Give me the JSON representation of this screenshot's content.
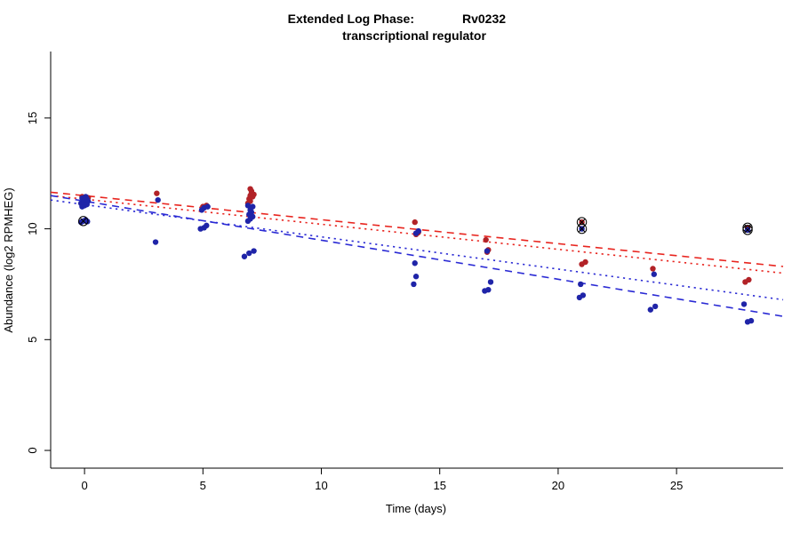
{
  "chart_data": {
    "type": "scatter",
    "title_left": "Extended Log Phase:",
    "title_gene": "Rv0232",
    "subtitle": "transcriptional regulator",
    "xlabel": "Time  (days)",
    "ylabel": "Abundance  (log2 RPMHEG)",
    "xlim": [
      -1.43,
      29.5
    ],
    "ylim": [
      -0.8,
      18.0
    ],
    "xticks": [
      0,
      5,
      10,
      15,
      20,
      25
    ],
    "yticks": [
      0,
      5,
      10,
      15
    ],
    "legend": "none",
    "grid": false,
    "colors": {
      "red_points": "#b22227",
      "blue_points": "#1f24a8",
      "red_line": "#e8251f",
      "blue_line": "#2a2ad4"
    },
    "series": [
      {
        "name": "red-series",
        "color": "#b22227",
        "points": [
          [
            -0.1,
            11.45
          ],
          [
            0.0,
            11.3
          ],
          [
            0.15,
            11.4
          ],
          [
            3.05,
            11.6
          ],
          [
            5.0,
            11.0
          ],
          [
            5.15,
            11.05
          ],
          [
            6.9,
            11.15
          ],
          [
            7.0,
            11.25
          ],
          [
            6.95,
            11.35
          ],
          [
            7.1,
            11.45
          ],
          [
            7.0,
            11.5
          ],
          [
            7.15,
            11.55
          ],
          [
            7.05,
            11.6
          ],
          [
            7.05,
            11.7
          ],
          [
            7.0,
            11.8
          ],
          [
            13.95,
            10.3
          ],
          [
            14.0,
            9.75
          ],
          [
            14.1,
            9.85
          ],
          [
            16.95,
            9.5
          ],
          [
            17.0,
            8.95
          ],
          [
            17.05,
            9.05
          ],
          [
            21.0,
            8.4
          ],
          [
            21.15,
            8.5
          ],
          [
            24.0,
            8.2
          ],
          [
            27.9,
            7.6
          ],
          [
            28.05,
            7.7
          ]
        ]
      },
      {
        "name": "blue-series",
        "color": "#1f24a8",
        "points": [
          [
            -0.15,
            10.3
          ],
          [
            0.05,
            10.4
          ],
          [
            0.12,
            10.33
          ],
          [
            -0.1,
            11.0
          ],
          [
            0.0,
            11.05
          ],
          [
            0.1,
            11.1
          ],
          [
            -0.15,
            11.15
          ],
          [
            0.05,
            11.2
          ],
          [
            0.15,
            11.25
          ],
          [
            -0.05,
            11.3
          ],
          [
            0.1,
            11.35
          ],
          [
            -0.1,
            11.38
          ],
          [
            0.0,
            11.4
          ],
          [
            0.05,
            11.45
          ],
          [
            3.0,
            9.4
          ],
          [
            3.1,
            11.3
          ],
          [
            4.9,
            10.0
          ],
          [
            5.05,
            10.05
          ],
          [
            5.15,
            10.15
          ],
          [
            4.95,
            10.85
          ],
          [
            5.05,
            10.95
          ],
          [
            5.2,
            11.0
          ],
          [
            6.75,
            8.75
          ],
          [
            6.95,
            8.9
          ],
          [
            7.15,
            9.0
          ],
          [
            6.9,
            10.35
          ],
          [
            7.0,
            10.45
          ],
          [
            7.1,
            10.55
          ],
          [
            6.95,
            10.65
          ],
          [
            7.05,
            10.75
          ],
          [
            7.0,
            10.85
          ],
          [
            7.1,
            11.0
          ],
          [
            6.9,
            11.05
          ],
          [
            13.9,
            7.5
          ],
          [
            14.0,
            7.85
          ],
          [
            13.95,
            8.45
          ],
          [
            14.0,
            9.8
          ],
          [
            14.1,
            9.9
          ],
          [
            16.9,
            7.2
          ],
          [
            17.05,
            7.25
          ],
          [
            17.15,
            7.6
          ],
          [
            17.0,
            9.0
          ],
          [
            20.9,
            6.9
          ],
          [
            21.05,
            7.0
          ],
          [
            20.95,
            7.5
          ],
          [
            23.9,
            6.35
          ],
          [
            24.1,
            6.5
          ],
          [
            24.05,
            7.95
          ],
          [
            27.85,
            6.6
          ],
          [
            28.0,
            5.8
          ],
          [
            28.15,
            5.85
          ]
        ]
      }
    ],
    "marked_points": [
      {
        "x": -0.05,
        "y": 10.35,
        "color": "#1f24a8"
      },
      {
        "x": 21.0,
        "y": 10.3,
        "color": "#b22227"
      },
      {
        "x": 21.0,
        "y": 10.0,
        "color": "#1f24a8"
      },
      {
        "x": 28.0,
        "y": 10.05,
        "color": "#b22227"
      },
      {
        "x": 28.0,
        "y": 9.95,
        "color": "#1f24a8"
      }
    ],
    "trend_lines": [
      {
        "name": "fit-red-dashed",
        "color": "#e8251f",
        "dash": "8 6",
        "x1": -1.43,
        "y1": 11.65,
        "x2": 29.5,
        "y2": 8.3
      },
      {
        "name": "fit-red-dotted",
        "color": "#e8251f",
        "dash": "2.2 4.5",
        "x1": -1.43,
        "y1": 11.5,
        "x2": 29.5,
        "y2": 8.0
      },
      {
        "name": "fit-blue-dashed",
        "color": "#2a2ad4",
        "dash": "8 6",
        "x1": -1.43,
        "y1": 11.5,
        "x2": 29.5,
        "y2": 6.05
      },
      {
        "name": "fit-blue-dotted",
        "color": "#2a2ad4",
        "dash": "2.2 4.5",
        "x1": -1.43,
        "y1": 11.3,
        "x2": 29.5,
        "y2": 6.8
      }
    ]
  }
}
